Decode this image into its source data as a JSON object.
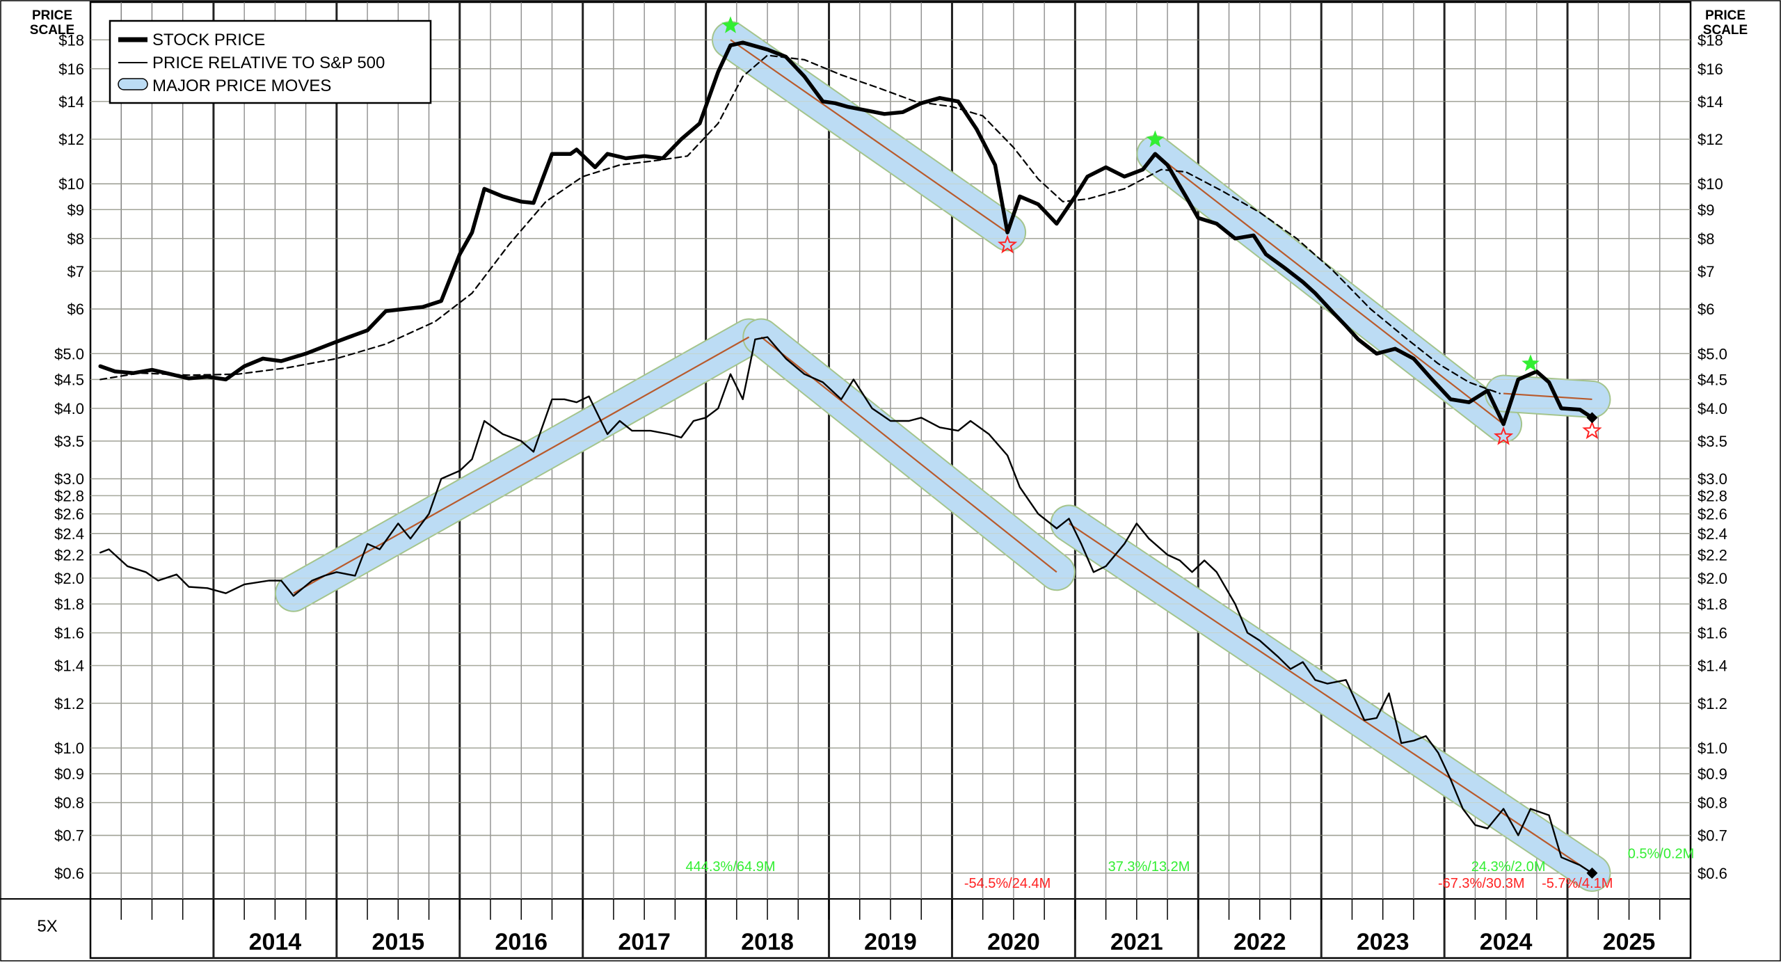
{
  "chart_data": {
    "type": "line",
    "scale": "log",
    "price_scale_label": [
      "PRICE",
      "SCALE"
    ],
    "factor_label": "5X",
    "legend": {
      "placement": "top-left",
      "entries": [
        "STOCK PRICE",
        "PRICE RELATIVE TO S&P 500",
        "MAJOR PRICE MOVES"
      ]
    },
    "x_tick_labels": [
      "2014",
      "2015",
      "2016",
      "2017",
      "2018",
      "2019",
      "2020",
      "2021",
      "2022",
      "2023",
      "2024",
      "2025"
    ],
    "xlim": [
      2013.0,
      2026.0
    ],
    "ylim": [
      0.54,
      21.0
    ],
    "grid": true,
    "y_ticks": [
      {
        "value": 18,
        "label": "$18"
      },
      {
        "value": 16,
        "label": "$16"
      },
      {
        "value": 14,
        "label": "$14"
      },
      {
        "value": 12,
        "label": "$12"
      },
      {
        "value": 10,
        "label": "$10"
      },
      {
        "value": 9,
        "label": "$9"
      },
      {
        "value": 8,
        "label": "$8"
      },
      {
        "value": 7,
        "label": "$7"
      },
      {
        "value": 6,
        "label": "$6"
      },
      {
        "value": 5.0,
        "label": "$5.0"
      },
      {
        "value": 4.5,
        "label": "$4.5"
      },
      {
        "value": 4.0,
        "label": "$4.0"
      },
      {
        "value": 3.5,
        "label": "$3.5"
      },
      {
        "value": 3.0,
        "label": "$3.0"
      },
      {
        "value": 2.8,
        "label": "$2.8"
      },
      {
        "value": 2.6,
        "label": "$2.6"
      },
      {
        "value": 2.4,
        "label": "$2.4"
      },
      {
        "value": 2.2,
        "label": "$2.2"
      },
      {
        "value": 2.0,
        "label": "$2.0"
      },
      {
        "value": 1.8,
        "label": "$1.8"
      },
      {
        "value": 1.6,
        "label": "$1.6"
      },
      {
        "value": 1.4,
        "label": "$1.4"
      },
      {
        "value": 1.2,
        "label": "$1.2"
      },
      {
        "value": 1.0,
        "label": "$1.0"
      },
      {
        "value": 0.9,
        "label": "$0.9"
      },
      {
        "value": 0.8,
        "label": "$0.8"
      },
      {
        "value": 0.7,
        "label": "$0.7"
      },
      {
        "value": 0.6,
        "label": "$0.6"
      }
    ],
    "colors": {
      "band_fill": "#bcdcf4",
      "band_stroke": "#a4c48c",
      "trend_line": "#b85a2c",
      "grid": "#7a7a7a",
      "annotation_up": "#33ee33",
      "annotation_down": "#ff2222",
      "star_high": "#33ee33",
      "star_low": "#ff2222"
    },
    "series": [
      {
        "name": "STOCK PRICE",
        "style": "thick",
        "points": [
          [
            2013.08,
            4.75
          ],
          [
            2013.2,
            4.65
          ],
          [
            2013.35,
            4.62
          ],
          [
            2013.5,
            4.68
          ],
          [
            2013.65,
            4.6
          ],
          [
            2013.8,
            4.52
          ],
          [
            2013.95,
            4.55
          ],
          [
            2014.1,
            4.5
          ],
          [
            2014.25,
            4.75
          ],
          [
            2014.4,
            4.9
          ],
          [
            2014.55,
            4.85
          ],
          [
            2014.75,
            5.0
          ],
          [
            2014.95,
            5.2
          ],
          [
            2015.1,
            5.35
          ],
          [
            2015.25,
            5.5
          ],
          [
            2015.4,
            5.95
          ],
          [
            2015.55,
            6.0
          ],
          [
            2015.7,
            6.05
          ],
          [
            2015.85,
            6.2
          ],
          [
            2016.0,
            7.5
          ],
          [
            2016.1,
            8.2
          ],
          [
            2016.2,
            9.8
          ],
          [
            2016.35,
            9.5
          ],
          [
            2016.5,
            9.3
          ],
          [
            2016.6,
            9.25
          ],
          [
            2016.75,
            11.3
          ],
          [
            2016.9,
            11.3
          ],
          [
            2016.95,
            11.5
          ],
          [
            2017.1,
            10.7
          ],
          [
            2017.2,
            11.3
          ],
          [
            2017.35,
            11.1
          ],
          [
            2017.5,
            11.2
          ],
          [
            2017.65,
            11.1
          ],
          [
            2017.8,
            12.0
          ],
          [
            2017.95,
            12.8
          ],
          [
            2018.1,
            15.8
          ],
          [
            2018.2,
            17.6
          ],
          [
            2018.3,
            17.8
          ],
          [
            2018.5,
            17.3
          ],
          [
            2018.65,
            16.8
          ],
          [
            2018.8,
            15.5
          ],
          [
            2018.95,
            14.0
          ],
          [
            2019.05,
            13.9
          ],
          [
            2019.15,
            13.7
          ],
          [
            2019.3,
            13.5
          ],
          [
            2019.45,
            13.3
          ],
          [
            2019.6,
            13.4
          ],
          [
            2019.75,
            13.9
          ],
          [
            2019.9,
            14.2
          ],
          [
            2020.05,
            14.0
          ],
          [
            2020.2,
            12.5
          ],
          [
            2020.35,
            10.8
          ],
          [
            2020.45,
            8.2
          ],
          [
            2020.55,
            9.5
          ],
          [
            2020.7,
            9.2
          ],
          [
            2020.85,
            8.5
          ],
          [
            2021.0,
            9.5
          ],
          [
            2021.1,
            10.3
          ],
          [
            2021.25,
            10.7
          ],
          [
            2021.4,
            10.3
          ],
          [
            2021.55,
            10.6
          ],
          [
            2021.65,
            11.3
          ],
          [
            2021.75,
            10.8
          ],
          [
            2021.9,
            9.5
          ],
          [
            2022.0,
            8.7
          ],
          [
            2022.15,
            8.5
          ],
          [
            2022.3,
            8.0
          ],
          [
            2022.45,
            8.1
          ],
          [
            2022.55,
            7.5
          ],
          [
            2022.7,
            7.1
          ],
          [
            2022.85,
            6.7
          ],
          [
            2022.95,
            6.4
          ],
          [
            2023.1,
            5.9
          ],
          [
            2023.2,
            5.6
          ],
          [
            2023.3,
            5.3
          ],
          [
            2023.45,
            5.0
          ],
          [
            2023.6,
            5.1
          ],
          [
            2023.75,
            4.9
          ],
          [
            2023.9,
            4.5
          ],
          [
            2024.05,
            4.15
          ],
          [
            2024.2,
            4.1
          ],
          [
            2024.35,
            4.3
          ],
          [
            2024.48,
            3.75
          ],
          [
            2024.6,
            4.5
          ],
          [
            2024.75,
            4.65
          ],
          [
            2024.85,
            4.45
          ],
          [
            2024.95,
            4.0
          ],
          [
            2025.1,
            3.98
          ],
          [
            2025.2,
            3.85
          ]
        ]
      },
      {
        "name": "",
        "style": "dashed",
        "points": [
          [
            2013.08,
            4.5
          ],
          [
            2013.4,
            4.62
          ],
          [
            2013.8,
            4.58
          ],
          [
            2014.2,
            4.6
          ],
          [
            2014.6,
            4.72
          ],
          [
            2015.0,
            4.9
          ],
          [
            2015.4,
            5.2
          ],
          [
            2015.8,
            5.7
          ],
          [
            2016.1,
            6.4
          ],
          [
            2016.4,
            7.8
          ],
          [
            2016.7,
            9.3
          ],
          [
            2017.0,
            10.3
          ],
          [
            2017.3,
            10.8
          ],
          [
            2017.6,
            11.0
          ],
          [
            2017.85,
            11.2
          ],
          [
            2018.1,
            12.8
          ],
          [
            2018.3,
            15.5
          ],
          [
            2018.5,
            16.9
          ],
          [
            2018.8,
            16.6
          ],
          [
            2019.1,
            15.6
          ],
          [
            2019.4,
            14.8
          ],
          [
            2019.7,
            14.0
          ],
          [
            2020.0,
            13.7
          ],
          [
            2020.25,
            13.2
          ],
          [
            2020.5,
            11.6
          ],
          [
            2020.7,
            10.2
          ],
          [
            2020.9,
            9.3
          ],
          [
            2021.1,
            9.4
          ],
          [
            2021.4,
            9.8
          ],
          [
            2021.7,
            10.6
          ],
          [
            2021.9,
            10.5
          ],
          [
            2022.2,
            9.7
          ],
          [
            2022.5,
            8.9
          ],
          [
            2022.8,
            8.0
          ],
          [
            2023.1,
            7.0
          ],
          [
            2023.4,
            6.0
          ],
          [
            2023.7,
            5.3
          ],
          [
            2023.95,
            4.8
          ],
          [
            2024.2,
            4.45
          ],
          [
            2024.45,
            4.25
          ]
        ]
      },
      {
        "name": "PRICE RELATIVE TO S&P 500",
        "style": "thin",
        "points": [
          [
            2013.08,
            2.22
          ],
          [
            2013.15,
            2.25
          ],
          [
            2013.3,
            2.1
          ],
          [
            2013.45,
            2.05
          ],
          [
            2013.55,
            1.98
          ],
          [
            2013.7,
            2.03
          ],
          [
            2013.8,
            1.93
          ],
          [
            2013.95,
            1.92
          ],
          [
            2014.1,
            1.88
          ],
          [
            2014.25,
            1.95
          ],
          [
            2014.45,
            1.98
          ],
          [
            2014.55,
            1.98
          ],
          [
            2014.65,
            1.86
          ],
          [
            2014.8,
            1.98
          ],
          [
            2014.9,
            2.02
          ],
          [
            2015.0,
            2.05
          ],
          [
            2015.15,
            2.02
          ],
          [
            2015.25,
            2.3
          ],
          [
            2015.35,
            2.25
          ],
          [
            2015.5,
            2.5
          ],
          [
            2015.6,
            2.35
          ],
          [
            2015.75,
            2.6
          ],
          [
            2015.85,
            3.0
          ],
          [
            2016.0,
            3.1
          ],
          [
            2016.1,
            3.25
          ],
          [
            2016.2,
            3.8
          ],
          [
            2016.35,
            3.6
          ],
          [
            2016.5,
            3.5
          ],
          [
            2016.6,
            3.35
          ],
          [
            2016.75,
            4.15
          ],
          [
            2016.85,
            4.15
          ],
          [
            2016.95,
            4.1
          ],
          [
            2017.05,
            4.2
          ],
          [
            2017.2,
            3.6
          ],
          [
            2017.3,
            3.8
          ],
          [
            2017.4,
            3.65
          ],
          [
            2017.55,
            3.65
          ],
          [
            2017.7,
            3.6
          ],
          [
            2017.8,
            3.55
          ],
          [
            2017.9,
            3.8
          ],
          [
            2018.0,
            3.85
          ],
          [
            2018.1,
            4.0
          ],
          [
            2018.2,
            4.6
          ],
          [
            2018.3,
            4.15
          ],
          [
            2018.4,
            5.3
          ],
          [
            2018.5,
            5.35
          ],
          [
            2018.65,
            4.9
          ],
          [
            2018.8,
            4.6
          ],
          [
            2018.95,
            4.45
          ],
          [
            2019.1,
            4.15
          ],
          [
            2019.2,
            4.5
          ],
          [
            2019.35,
            4.0
          ],
          [
            2019.5,
            3.8
          ],
          [
            2019.65,
            3.8
          ],
          [
            2019.75,
            3.85
          ],
          [
            2019.9,
            3.7
          ],
          [
            2020.05,
            3.65
          ],
          [
            2020.15,
            3.8
          ],
          [
            2020.3,
            3.6
          ],
          [
            2020.45,
            3.3
          ],
          [
            2020.55,
            2.9
          ],
          [
            2020.7,
            2.6
          ],
          [
            2020.85,
            2.45
          ],
          [
            2020.95,
            2.55
          ],
          [
            2021.05,
            2.3
          ],
          [
            2021.15,
            2.05
          ],
          [
            2021.25,
            2.1
          ],
          [
            2021.4,
            2.3
          ],
          [
            2021.5,
            2.5
          ],
          [
            2021.6,
            2.35
          ],
          [
            2021.75,
            2.2
          ],
          [
            2021.85,
            2.15
          ],
          [
            2021.95,
            2.05
          ],
          [
            2022.05,
            2.15
          ],
          [
            2022.15,
            2.05
          ],
          [
            2022.3,
            1.8
          ],
          [
            2022.4,
            1.6
          ],
          [
            2022.5,
            1.55
          ],
          [
            2022.65,
            1.45
          ],
          [
            2022.75,
            1.38
          ],
          [
            2022.85,
            1.42
          ],
          [
            2022.95,
            1.32
          ],
          [
            2023.05,
            1.3
          ],
          [
            2023.2,
            1.32
          ],
          [
            2023.35,
            1.12
          ],
          [
            2023.45,
            1.13
          ],
          [
            2023.55,
            1.25
          ],
          [
            2023.65,
            1.02
          ],
          [
            2023.75,
            1.03
          ],
          [
            2023.85,
            1.05
          ],
          [
            2023.95,
            0.98
          ],
          [
            2024.05,
            0.88
          ],
          [
            2024.15,
            0.78
          ],
          [
            2024.25,
            0.73
          ],
          [
            2024.35,
            0.72
          ],
          [
            2024.48,
            0.78
          ],
          [
            2024.6,
            0.7
          ],
          [
            2024.7,
            0.78
          ],
          [
            2024.85,
            0.76
          ],
          [
            2024.95,
            0.64
          ],
          [
            2025.1,
            0.62
          ],
          [
            2025.2,
            0.6
          ]
        ]
      }
    ],
    "end_markers": [
      {
        "x": 2025.2,
        "y": 3.85
      },
      {
        "x": 2025.2,
        "y": 0.6
      }
    ],
    "price_moves": [
      {
        "x1": 2018.2,
        "y1": 18.0,
        "x2": 2020.45,
        "y2": 8.2,
        "high_star": true,
        "low_star": true
      },
      {
        "x1": 2021.65,
        "y1": 11.3,
        "x2": 2024.48,
        "y2": 3.75,
        "high_star": true,
        "low_star": true
      },
      {
        "x1": 2024.48,
        "y1": 4.25,
        "x2": 2025.2,
        "y2": 4.15,
        "high_star": true,
        "low_star": true,
        "star_high": {
          "x": 2024.7,
          "y": 4.8
        },
        "star_low": {
          "x": 2025.2,
          "y": 3.65
        }
      },
      {
        "x1": 2014.65,
        "y1": 1.88,
        "x2": 2018.35,
        "y2": 5.35
      },
      {
        "x1": 2018.45,
        "y1": 5.35,
        "x2": 2020.85,
        "y2": 2.05
      },
      {
        "x1": 2020.95,
        "y1": 2.5,
        "x2": 2025.2,
        "y2": 0.6
      }
    ],
    "annotations": [
      {
        "text": "444.3%/64.9M",
        "x": 2018.2,
        "y": 0.605,
        "color": "up"
      },
      {
        "text": "-54.5%/24.4M",
        "x": 2020.45,
        "y": 0.565,
        "color": "down"
      },
      {
        "text": "37.3%/13.2M",
        "x": 2021.6,
        "y": 0.605,
        "color": "up"
      },
      {
        "text": "24.3%/2.0M",
        "x": 2024.52,
        "y": 0.605,
        "color": "up"
      },
      {
        "text": "-67.3%/30.3M",
        "x": 2024.3,
        "y": 0.565,
        "color": "down"
      },
      {
        "text": "-5.7%/4.1M",
        "x": 2025.08,
        "y": 0.565,
        "color": "down"
      },
      {
        "text": "0.5%/0.2M",
        "x": 2025.76,
        "y": 0.638,
        "color": "up"
      }
    ]
  }
}
